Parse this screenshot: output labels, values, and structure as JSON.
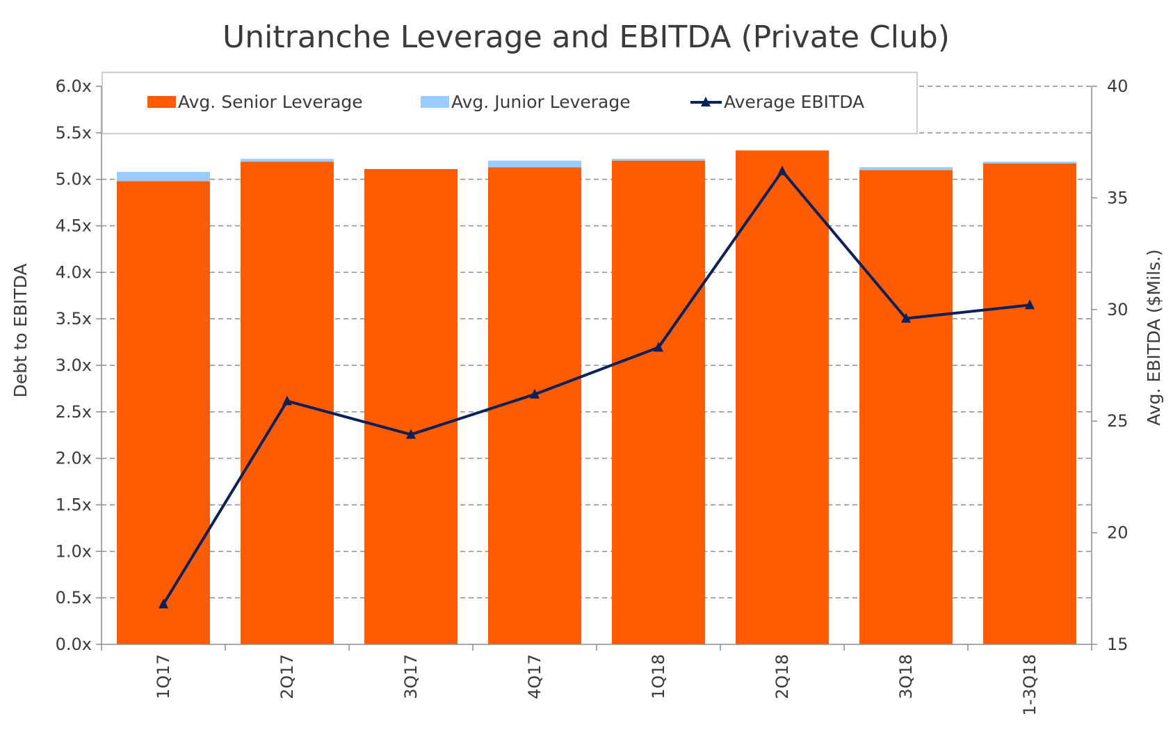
{
  "chart_data": {
    "type": "bar",
    "title": "Unitranche Leverage and EBITDA (Private Club)",
    "categories": [
      "1Q17",
      "2Q17",
      "3Q17",
      "4Q17",
      "1Q18",
      "2Q18",
      "3Q18",
      "1-3Q18"
    ],
    "series": [
      {
        "name": "Avg. Senior Leverage",
        "type": "bar",
        "stack": "leverage",
        "axis": "left",
        "color": "#FF5B00",
        "values": [
          4.98,
          5.19,
          5.11,
          5.13,
          5.2,
          5.31,
          5.1,
          5.17
        ]
      },
      {
        "name": "Avg. Junior Leverage",
        "type": "bar",
        "stack": "leverage",
        "axis": "left",
        "color": "#99CCFF",
        "values": [
          0.1,
          0.03,
          0.0,
          0.07,
          0.02,
          0.0,
          0.03,
          0.02
        ]
      },
      {
        "name": "Average EBITDA",
        "type": "line",
        "marker": "triangle",
        "axis": "right",
        "color": "#0D2159",
        "values": [
          16.8,
          25.9,
          24.4,
          26.2,
          28.3,
          36.2,
          29.6,
          30.2
        ]
      }
    ],
    "y_left": {
      "label": "Debt to EBITDA",
      "range": [
        0,
        6
      ],
      "ticks": [
        "0.0x",
        "0.5x",
        "1.0x",
        "1.5x",
        "2.0x",
        "2.5x",
        "3.0x",
        "3.5x",
        "4.0x",
        "4.5x",
        "5.0x",
        "5.5x",
        "6.0x"
      ]
    },
    "y_right": {
      "label": "Avg. EBITDA ($Mils.)",
      "range": [
        15,
        40
      ],
      "ticks": [
        "15",
        "20",
        "25",
        "30",
        "35",
        "40"
      ]
    },
    "grid": "horizontal-dashed",
    "legend_position": "top"
  }
}
